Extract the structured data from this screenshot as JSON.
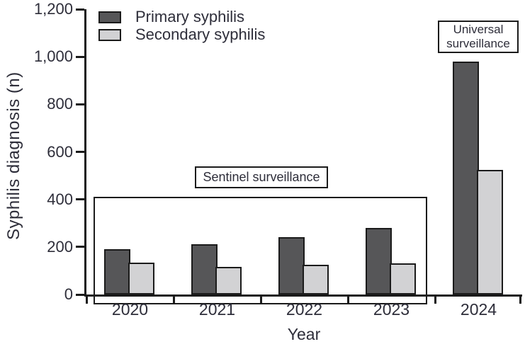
{
  "figure": {
    "y_axis_label": "Syphilis diagnosis (n)",
    "x_axis_label": "Year",
    "sentinel_label": "Sentinel surveillance",
    "universal_label": "Universal surveillance",
    "colors": {
      "primary_bar": "#565658",
      "secondary_bar": "#d2d2d4",
      "axis_and_borders": "#1b1b1b",
      "text": "#2e2e3a",
      "background": "#ffffff"
    }
  },
  "chart_data": {
    "type": "bar",
    "title": "",
    "xlabel": "Year",
    "ylabel": "Syphilis diagnosis (n)",
    "categories": [
      "2020",
      "2021",
      "2022",
      "2023",
      "2024"
    ],
    "series": [
      {
        "name": "Primary syphilis",
        "color": "#565658",
        "values": [
          190,
          210,
          240,
          280,
          980
        ]
      },
      {
        "name": "Secondary syphilis",
        "color": "#d2d2d4",
        "values": [
          135,
          115,
          125,
          130,
          525
        ]
      }
    ],
    "ylim": [
      0,
      1200
    ],
    "yticks": [
      0,
      200,
      400,
      600,
      800,
      1000,
      1200
    ],
    "ytick_labels": [
      "0",
      "200",
      "400",
      "600",
      "800",
      "1,000",
      "1,200"
    ],
    "grid": false,
    "legend_position": "upper-left-inside",
    "annotations": [
      {
        "text": "Sentinel surveillance",
        "type": "boxed-label-with-outline",
        "covers": [
          "2020",
          "2021",
          "2022",
          "2023"
        ],
        "outline_top_value": 400
      },
      {
        "text": "Universal surveillance",
        "type": "boxed-label",
        "covers": [
          "2024"
        ]
      }
    ]
  }
}
